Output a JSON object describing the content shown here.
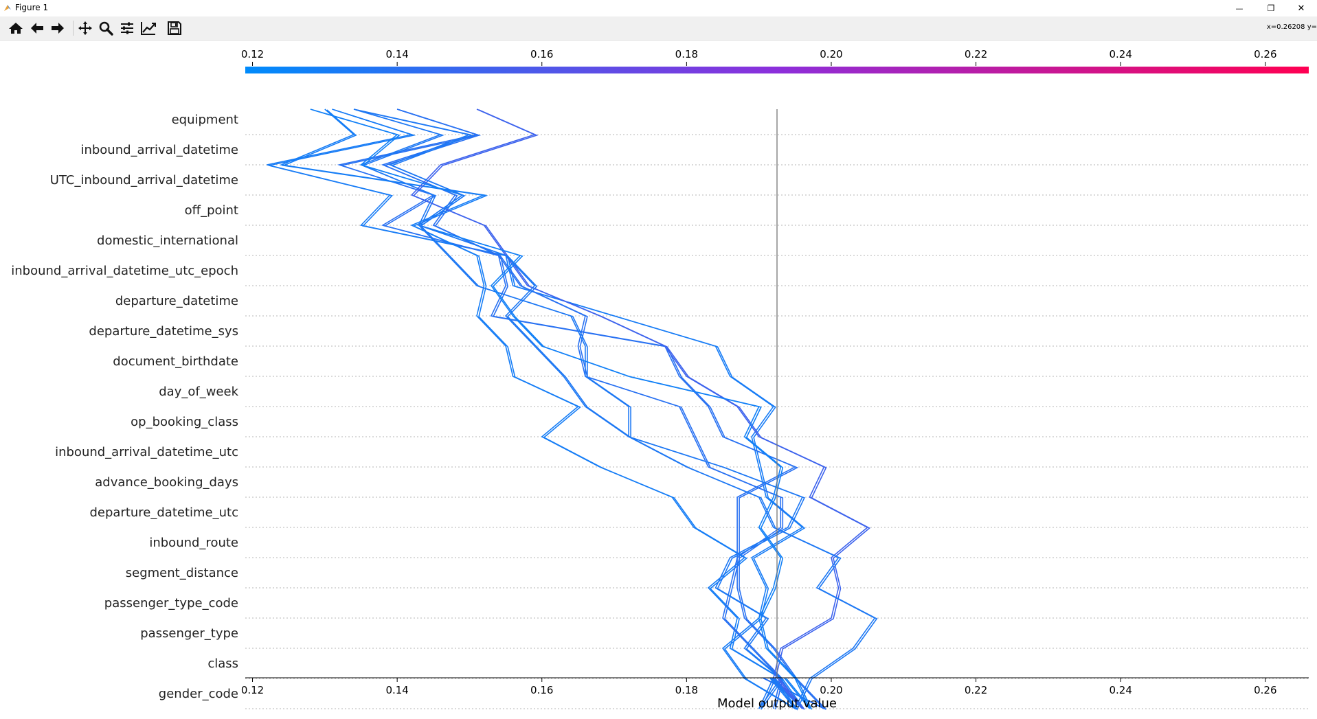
{
  "window": {
    "title": "Figure 1",
    "minimize_glyph": "—",
    "maximize_glyph": "❐",
    "close_glyph": "✕"
  },
  "toolbar": {
    "tools": [
      "home-icon",
      "back-arrow-icon",
      "forward-arrow-icon",
      "pan-icon",
      "zoom-icon",
      "configure-subplots-icon",
      "edit-axis-icon",
      "save-icon"
    ],
    "coordinate_readout": "x=0.26208 y="
  },
  "chart_data": {
    "type": "line",
    "xlabel": "Model output value",
    "ylabel": "",
    "xlim": [
      0.119,
      0.266
    ],
    "xticks": [
      0.12,
      0.14,
      0.16,
      0.18,
      0.2,
      0.22,
      0.24,
      0.26
    ],
    "xtick_labels": [
      "0.12",
      "0.14",
      "0.16",
      "0.18",
      "0.20",
      "0.22",
      "0.24",
      "0.26"
    ],
    "base_value": 0.1925,
    "colormap": {
      "low": "#008bfb",
      "mid": "#8c2fdb",
      "high": "#ff0052"
    },
    "features": [
      "equipment",
      "inbound_arrival_datetime",
      "UTC_inbound_arrival_datetime",
      "off_point",
      "domestic_international",
      "inbound_arrival_datetime_utc_epoch",
      "departure_datetime",
      "departure_datetime_sys",
      "document_birthdate",
      "day_of_week",
      "op_booking_class",
      "inbound_arrival_datetime_utc",
      "advance_booking_days",
      "departure_datetime_utc",
      "inbound_route",
      "segment_distance",
      "passenger_type_code",
      "passenger_type",
      "class",
      "gender_code"
    ],
    "series": [
      {
        "values": [
          0.1915,
          0.195,
          0.188,
          0.185,
          0.19,
          0.191,
          0.189,
          0.196,
          0.191,
          0.19,
          0.189,
          0.192,
          0.186,
          0.184,
          0.17,
          0.156,
          0.155,
          0.135,
          0.139,
          0.122,
          0.142,
          0.131
        ]
      },
      {
        "values": [
          0.1905,
          0.199,
          0.195,
          0.192,
          0.188,
          0.187,
          0.187,
          0.193,
          0.193,
          0.183,
          0.181,
          0.179,
          0.166,
          0.165,
          0.166,
          0.157,
          0.154,
          0.138,
          0.145,
          0.132,
          0.151,
          0.14
        ]
      },
      {
        "values": [
          0.1915,
          0.196,
          0.193,
          0.186,
          0.187,
          0.183,
          0.188,
          0.181,
          0.178,
          0.168,
          0.16,
          0.165,
          0.156,
          0.155,
          0.151,
          0.152,
          0.151,
          0.142,
          0.152,
          0.124,
          0.134,
          0.13
        ]
      },
      {
        "values": [
          0.193,
          0.192,
          0.193,
          0.189,
          0.185,
          0.186,
          0.187,
          0.187,
          0.187,
          0.195,
          0.185,
          0.183,
          0.179,
          0.177,
          0.153,
          0.155,
          0.154,
          0.145,
          0.148,
          0.138,
          0.151,
          0.14
        ]
      },
      {
        "values": [
          0.192,
          0.19,
          0.193,
          0.188,
          0.191,
          0.184,
          0.186,
          0.194,
          0.196,
          0.185,
          0.172,
          0.172,
          0.166,
          0.166,
          0.164,
          0.151,
          0.147,
          0.143,
          0.145,
          0.135,
          0.146,
          0.134
        ]
      },
      {
        "values": [
          0.1925,
          0.196,
          0.192,
          0.193,
          0.2,
          0.201,
          0.2,
          0.205,
          0.197,
          0.199,
          0.19,
          0.187,
          0.18,
          0.177,
          0.168,
          0.158,
          0.155,
          0.152,
          0.142,
          0.146,
          0.159,
          0.151
        ]
      },
      {
        "values": [
          0.1935,
          0.197,
          0.195,
          0.191,
          0.19,
          0.192,
          0.193,
          0.19,
          0.192,
          0.193,
          0.188,
          0.19,
          0.172,
          0.16,
          0.156,
          0.153,
          0.157,
          0.143,
          0.149,
          0.135,
          0.14,
          0.128
        ]
      },
      {
        "values": [
          0.192,
          0.195,
          0.197,
          0.203,
          0.206,
          0.198,
          0.201,
          0.192,
          0.19,
          0.18,
          0.172,
          0.166,
          0.163,
          0.159,
          0.155,
          0.159,
          0.155,
          0.143,
          0.149,
          0.139,
          0.15,
          0.134
        ]
      }
    ]
  }
}
